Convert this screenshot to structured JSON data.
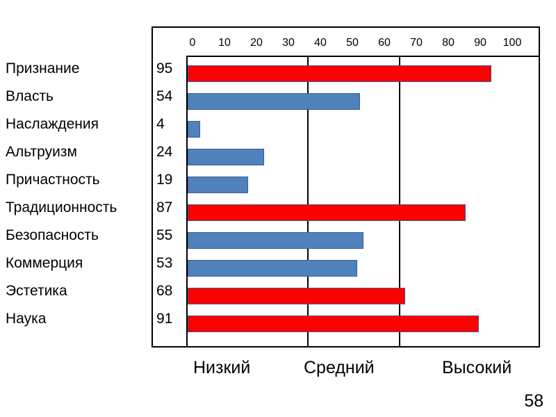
{
  "chart_data": {
    "type": "bar",
    "orientation": "horizontal",
    "categories": [
      "Признание",
      "Власть",
      "Наслаждения",
      "Альтруизм",
      "Причастность",
      "Традиционность",
      "Безопасность",
      "Коммерция",
      "Эстетика",
      "Наука"
    ],
    "values": [
      95,
      54,
      4,
      24,
      19,
      87,
      55,
      53,
      68,
      91
    ],
    "value_labels": [
      "95",
      "54",
      "4",
      "24",
      "19",
      "87",
      "55",
      "53",
      "68",
      "91"
    ],
    "bar_levels": [
      "high",
      "mid",
      "low",
      "low",
      "low",
      "high",
      "mid",
      "mid",
      "high",
      "high"
    ],
    "x_ticks": [
      "0",
      "10",
      "20",
      "30",
      "40",
      "50",
      "60",
      "70",
      "80",
      "90",
      "100"
    ],
    "xlim": [
      0,
      100
    ],
    "zones": [
      "Низкий",
      "Средний",
      "Высокий"
    ],
    "colors": {
      "high": "#ff0000",
      "mid": "#4f81bd",
      "low": "#4f81bd"
    }
  },
  "page_number": "58"
}
